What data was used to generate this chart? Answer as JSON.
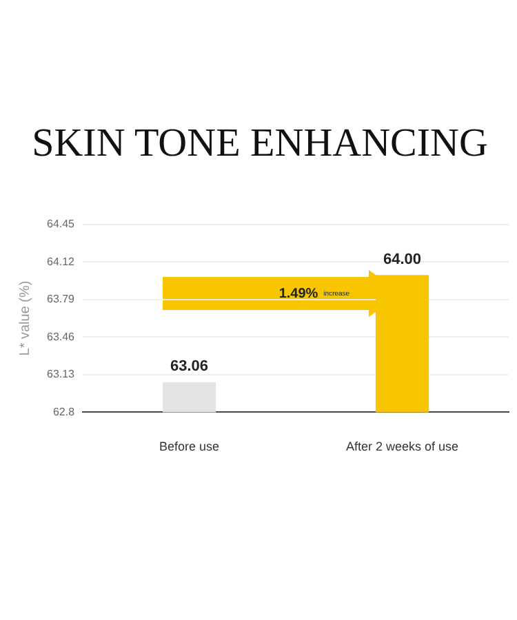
{
  "chart_data": {
    "type": "bar",
    "title": "SKIN TONE ENHANCING",
    "ylabel": "L* value (%)",
    "categories": [
      "Before use",
      "After 2 weeks of use"
    ],
    "values": [
      63.06,
      64.0
    ],
    "colors": [
      "#e3e3e3",
      "#f7c600"
    ],
    "value_labels": [
      "63.06",
      "64.00"
    ],
    "ylim": [
      62.8,
      64.45
    ],
    "yticks": [
      62.8,
      63.13,
      63.46,
      63.79,
      64.12,
      64.45
    ],
    "grid": "y",
    "legend": false,
    "annotations": [
      "1.49%",
      "increase"
    ]
  }
}
